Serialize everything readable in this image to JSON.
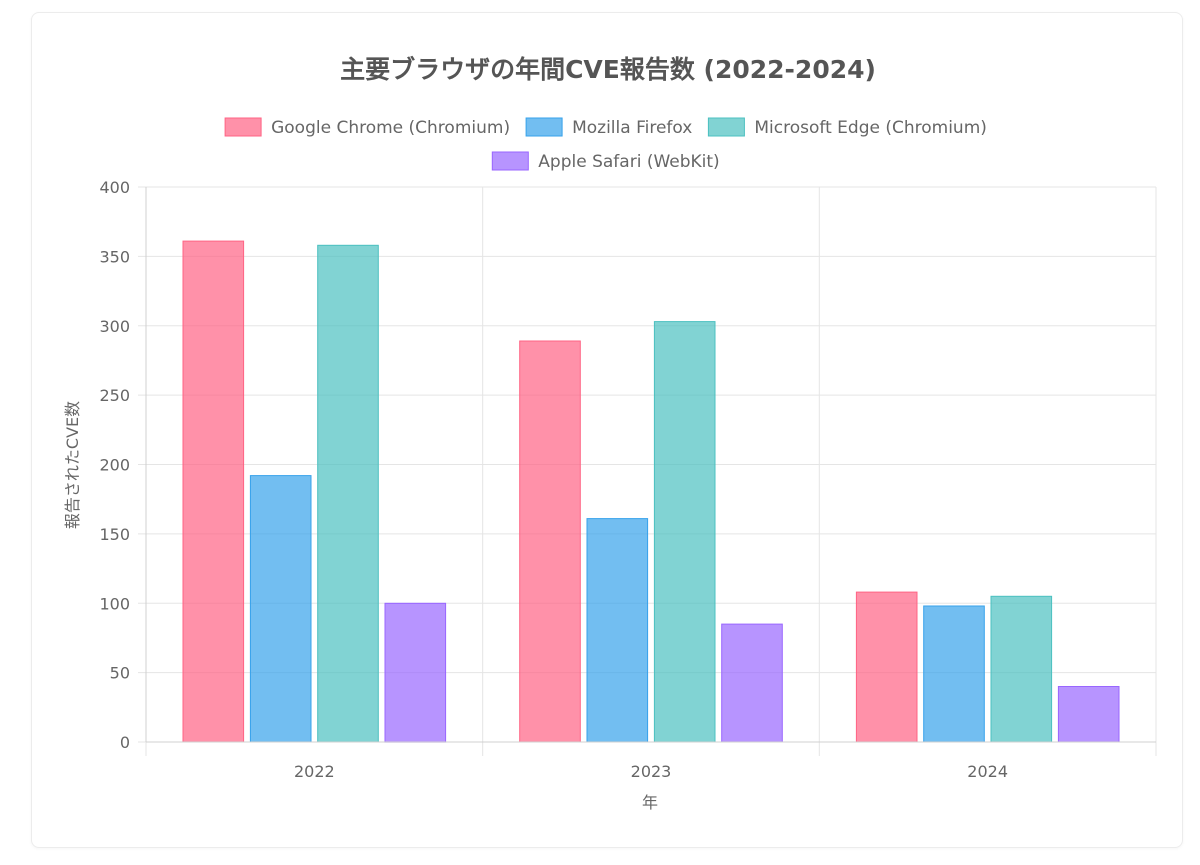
{
  "chart_data": {
    "type": "bar",
    "title": "主要ブラウザの年間CVE報告数 (2022-2024)",
    "xlabel": "年",
    "ylabel": "報告されたCVE数",
    "categories": [
      "2022",
      "2023",
      "2024"
    ],
    "ylim": [
      0,
      400
    ],
    "yticks": [
      0,
      50,
      100,
      150,
      200,
      250,
      300,
      350,
      400
    ],
    "grid": true,
    "legend_position": "top",
    "series": [
      {
        "name": "Google Chrome (Chromium)",
        "values": [
          361,
          289,
          108
        ],
        "fill": "#ff6384",
        "stroke": "#ff6384"
      },
      {
        "name": "Mozilla Firefox",
        "values": [
          192,
          161,
          98
        ],
        "fill": "#36a2eb",
        "stroke": "#36a2eb"
      },
      {
        "name": "Microsoft Edge (Chromium)",
        "values": [
          358,
          303,
          105
        ],
        "fill": "#4bc0c0",
        "stroke": "#4bc0c0"
      },
      {
        "name": "Apple Safari (WebKit)",
        "values": [
          100,
          85,
          40
        ],
        "fill": "#9966ff",
        "stroke": "#9966ff"
      }
    ]
  }
}
